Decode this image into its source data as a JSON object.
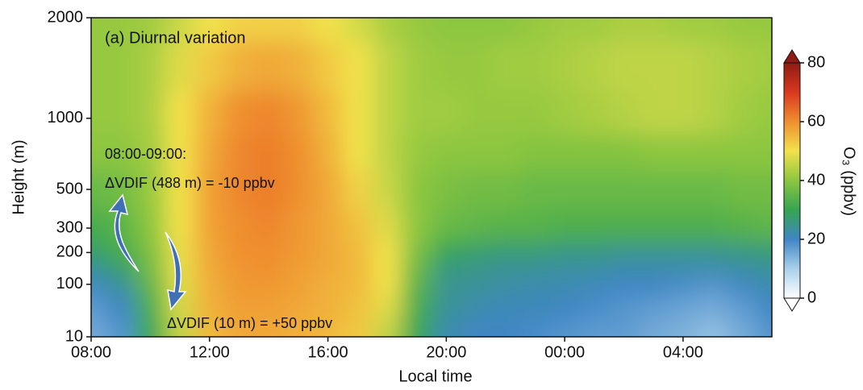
{
  "chart_data": {
    "type": "contour",
    "x_label": "Local time",
    "y_label": "Height (m)",
    "colorbar_label": "O₃ (ppbv)",
    "annotations": [
      "(a) Diurnal variation",
      "08:00-09:00:",
      "ΔVDIF (488 m) = -10 ppbv",
      "ΔVDIF (10 m) = +50 ppbv"
    ],
    "x": [
      8,
      9,
      10,
      11,
      12,
      13,
      14,
      15,
      16,
      17,
      18,
      19,
      20,
      21,
      22,
      23,
      24,
      25,
      26,
      27,
      28,
      29,
      30,
      31
    ],
    "y": [
      10,
      50,
      100,
      150,
      200,
      300,
      500,
      750,
      1000,
      1500,
      2000
    ],
    "z": [
      [
        15,
        18,
        30,
        45,
        55,
        57,
        57,
        56,
        55,
        53,
        45,
        30,
        22,
        20,
        20,
        19,
        18,
        17,
        17,
        15,
        14,
        12,
        15,
        18
      ],
      [
        17,
        20,
        32,
        47,
        56,
        58,
        58,
        57,
        56,
        54,
        48,
        32,
        24,
        22,
        21,
        21,
        20,
        19,
        18,
        17,
        16,
        15,
        17,
        20
      ],
      [
        20,
        24,
        35,
        48,
        56,
        59,
        59,
        58,
        56,
        55,
        50,
        34,
        25,
        24,
        23,
        22,
        22,
        21,
        20,
        20,
        19,
        18,
        20,
        22
      ],
      [
        24,
        28,
        37,
        49,
        57,
        59,
        60,
        58,
        57,
        55,
        50,
        36,
        26,
        25,
        24,
        24,
        23,
        23,
        22,
        22,
        22,
        22,
        23,
        24
      ],
      [
        28,
        32,
        38,
        49,
        57,
        60,
        60,
        59,
        57,
        55,
        50,
        38,
        30,
        28,
        27,
        27,
        26,
        26,
        25,
        25,
        25,
        25,
        26,
        27
      ],
      [
        32,
        34,
        40,
        50,
        58,
        60,
        61,
        59,
        57,
        54,
        48,
        40,
        36,
        35,
        34,
        34,
        33,
        33,
        33,
        33,
        33,
        33,
        34,
        35
      ],
      [
        36,
        37,
        41,
        50,
        58,
        61,
        62,
        60,
        57,
        52,
        46,
        40,
        38,
        37,
        37,
        36,
        36,
        36,
        36,
        36,
        36,
        36,
        37,
        37
      ],
      [
        40,
        40,
        42,
        50,
        57,
        61,
        62,
        60,
        56,
        50,
        45,
        41,
        40,
        40,
        40,
        39,
        39,
        39,
        39,
        40,
        40,
        40,
        40,
        40
      ],
      [
        41,
        41,
        43,
        50,
        56,
        60,
        61,
        59,
        55,
        50,
        45,
        42,
        42,
        41,
        41,
        41,
        42,
        43,
        44,
        45,
        45,
        44,
        42,
        41
      ],
      [
        41,
        41,
        43,
        48,
        53,
        56,
        57,
        56,
        53,
        50,
        45,
        42,
        41,
        41,
        42,
        42,
        43,
        44,
        45,
        45,
        45,
        44,
        43,
        42
      ],
      [
        41,
        41,
        42,
        46,
        50,
        52,
        52,
        52,
        50,
        47,
        43,
        41,
        40,
        40,
        40,
        41,
        42,
        42,
        43,
        43,
        42,
        42,
        41,
        41
      ]
    ],
    "xlim": [
      8,
      31
    ],
    "xticks": [
      {
        "value": 8,
        "label": "08:00"
      },
      {
        "value": 12,
        "label": "12:00"
      },
      {
        "value": 16,
        "label": "16:00"
      },
      {
        "value": 20,
        "label": "20:00"
      },
      {
        "value": 24,
        "label": "00:00"
      },
      {
        "value": 28,
        "label": "04:00"
      }
    ],
    "ylim": [
      10,
      2000
    ],
    "yticks": [
      10,
      100,
      200,
      300,
      500,
      1000,
      2000
    ],
    "yscale": "sqrt",
    "clim": [
      0,
      80
    ],
    "cticks": [
      0,
      20,
      40,
      60,
      80
    ],
    "colormap": [
      "#ffffff",
      "#a9d0ea",
      "#3f86c5",
      "#35a552",
      "#8cc63f",
      "#f2e24c",
      "#ef8f2e",
      "#d9381f",
      "#8e1b14"
    ]
  }
}
